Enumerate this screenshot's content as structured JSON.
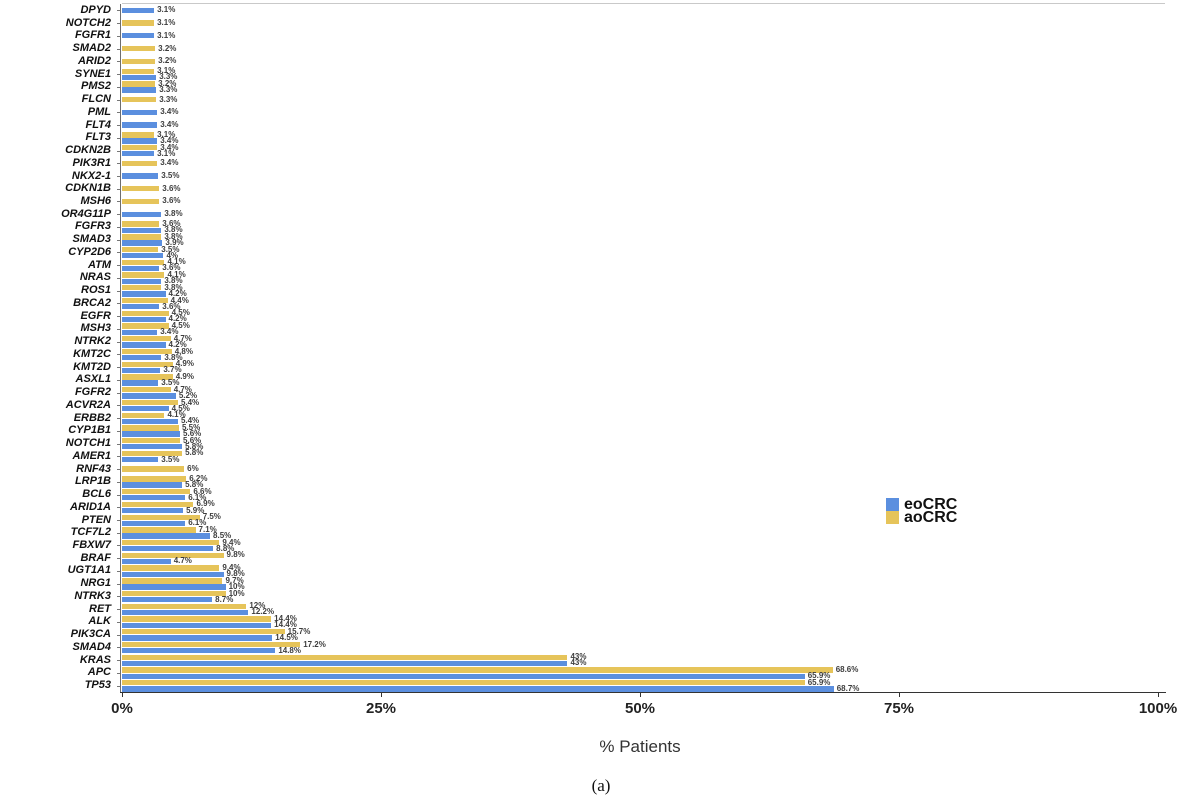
{
  "chart_data": {
    "type": "bar",
    "orientation": "horizontal",
    "title": "",
    "xlabel": "% Patients",
    "caption": "(a)",
    "xlim": [
      0,
      100
    ],
    "x_ticks": [
      {
        "label": "0%",
        "pct": 0
      },
      {
        "label": "25%",
        "pct": 25
      },
      {
        "label": "50%",
        "pct": 50
      },
      {
        "label": "75%",
        "pct": 75
      },
      {
        "label": "100%",
        "pct": 100
      }
    ],
    "grid": false,
    "legend_position": "right-middle",
    "series_meta": {
      "eoCRC": {
        "label": "eoCRC",
        "color": "#5B8FDF"
      },
      "aoCRC": {
        "label": "aoCRC",
        "color": "#E6C45A"
      }
    },
    "legend": [
      {
        "name": "eoCRC",
        "color": "#5B8FDF"
      },
      {
        "name": "aoCRC",
        "color": "#E6C45A"
      }
    ],
    "note": "Each gene row: aoCRC (yellow) bar on top, eoCRC (blue) bar below; null means no bar shown",
    "genes": [
      {
        "name": "DPYD",
        "aoCRC": null,
        "eoCRC": 3.1
      },
      {
        "name": "NOTCH2",
        "aoCRC": 3.1,
        "eoCRC": null
      },
      {
        "name": "FGFR1",
        "aoCRC": null,
        "eoCRC": 3.1
      },
      {
        "name": "SMAD2",
        "aoCRC": 3.2,
        "eoCRC": null
      },
      {
        "name": "ARID2",
        "aoCRC": 3.2,
        "eoCRC": null
      },
      {
        "name": "SYNE1",
        "aoCRC": 3.1,
        "eoCRC": 3.3
      },
      {
        "name": "PMS2",
        "aoCRC": 3.2,
        "eoCRC": 3.3
      },
      {
        "name": "FLCN",
        "aoCRC": 3.3,
        "eoCRC": null
      },
      {
        "name": "PML",
        "aoCRC": null,
        "eoCRC": 3.4
      },
      {
        "name": "FLT4",
        "aoCRC": null,
        "eoCRC": 3.4
      },
      {
        "name": "FLT3",
        "aoCRC": 3.1,
        "eoCRC": 3.4
      },
      {
        "name": "CDKN2B",
        "aoCRC": 3.4,
        "eoCRC": 3.1
      },
      {
        "name": "PIK3R1",
        "aoCRC": 3.4,
        "eoCRC": null
      },
      {
        "name": "NKX2-1",
        "aoCRC": null,
        "eoCRC": 3.5
      },
      {
        "name": "CDKN1B",
        "aoCRC": 3.6,
        "eoCRC": null
      },
      {
        "name": "MSH6",
        "aoCRC": 3.6,
        "eoCRC": null
      },
      {
        "name": "OR4G11P",
        "aoCRC": null,
        "eoCRC": 3.8
      },
      {
        "name": "FGFR3",
        "aoCRC": 3.6,
        "eoCRC": 3.8
      },
      {
        "name": "SMAD3",
        "aoCRC": 3.8,
        "eoCRC": 3.9
      },
      {
        "name": "CYP2D6",
        "aoCRC": 3.5,
        "eoCRC": 4
      },
      {
        "name": "ATM",
        "aoCRC": 4.1,
        "eoCRC": 3.6
      },
      {
        "name": "NRAS",
        "aoCRC": 4.1,
        "eoCRC": 3.8
      },
      {
        "name": "ROS1",
        "aoCRC": 3.8,
        "eoCRC": 4.2
      },
      {
        "name": "BRCA2",
        "aoCRC": 4.4,
        "eoCRC": 3.6
      },
      {
        "name": "EGFR",
        "aoCRC": 4.5,
        "eoCRC": 4.2
      },
      {
        "name": "MSH3",
        "aoCRC": 4.5,
        "eoCRC": 3.4
      },
      {
        "name": "NTRK2",
        "aoCRC": 4.7,
        "eoCRC": 4.2
      },
      {
        "name": "KMT2C",
        "aoCRC": 4.8,
        "eoCRC": 3.8
      },
      {
        "name": "KMT2D",
        "aoCRC": 4.9,
        "eoCRC": 3.7
      },
      {
        "name": "ASXL1",
        "aoCRC": 4.9,
        "eoCRC": 3.5
      },
      {
        "name": "FGFR2",
        "aoCRC": 4.7,
        "eoCRC": 5.2
      },
      {
        "name": "ACVR2A",
        "aoCRC": 5.4,
        "eoCRC": 4.5
      },
      {
        "name": "ERBB2",
        "aoCRC": 4.1,
        "eoCRC": 5.4
      },
      {
        "name": "CYP1B1",
        "aoCRC": 5.5,
        "eoCRC": 5.6
      },
      {
        "name": "NOTCH1",
        "aoCRC": 5.6,
        "eoCRC": 5.8
      },
      {
        "name": "AMER1",
        "aoCRC": 5.8,
        "eoCRC": 3.5
      },
      {
        "name": "RNF43",
        "aoCRC": 6,
        "eoCRC": null
      },
      {
        "name": "LRP1B",
        "aoCRC": 6.2,
        "eoCRC": 5.8
      },
      {
        "name": "BCL6",
        "aoCRC": 6.6,
        "eoCRC": 6.1
      },
      {
        "name": "ARID1A",
        "aoCRC": 6.9,
        "eoCRC": 5.9
      },
      {
        "name": "PTEN",
        "aoCRC": 7.5,
        "eoCRC": 6.1
      },
      {
        "name": "TCF7L2",
        "aoCRC": 7.1,
        "eoCRC": 8.5
      },
      {
        "name": "FBXW7",
        "aoCRC": 9.4,
        "eoCRC": 8.8
      },
      {
        "name": "BRAF",
        "aoCRC": 9.8,
        "eoCRC": 4.7
      },
      {
        "name": "UGT1A1",
        "aoCRC": 9.4,
        "eoCRC": 9.8
      },
      {
        "name": "NRG1",
        "aoCRC": 9.7,
        "eoCRC": 10
      },
      {
        "name": "NTRK3",
        "aoCRC": 10,
        "eoCRC": 8.7
      },
      {
        "name": "RET",
        "aoCRC": 12,
        "eoCRC": 12.2
      },
      {
        "name": "ALK",
        "aoCRC": 14.4,
        "eoCRC": 14.4
      },
      {
        "name": "PIK3CA",
        "aoCRC": 15.7,
        "eoCRC": 14.5
      },
      {
        "name": "SMAD4",
        "aoCRC": 17.2,
        "eoCRC": 14.8
      },
      {
        "name": "KRAS",
        "aoCRC": 43,
        "eoCRC": 43
      },
      {
        "name": "APC",
        "aoCRC": 68.6,
        "eoCRC": 65.9
      },
      {
        "name": "TP53",
        "aoCRC": 65.9,
        "eoCRC": 68.7
      }
    ]
  }
}
